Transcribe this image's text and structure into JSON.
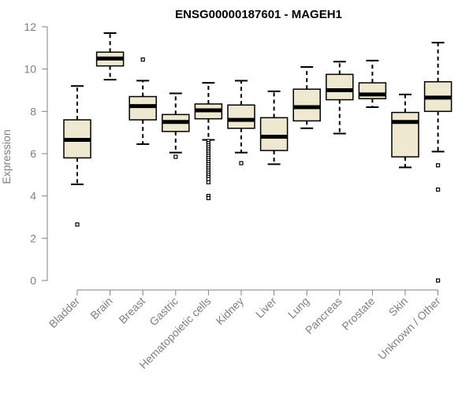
{
  "chart_data": {
    "type": "box",
    "title": "ENSG00000187601 - MAGEH1",
    "xlabel": "",
    "ylabel": "Expression",
    "ylim": [
      0,
      12
    ],
    "yticks": [
      0,
      2,
      4,
      6,
      8,
      10,
      12
    ],
    "grid": false,
    "colors": {
      "box_fill": "#efe8d0",
      "outline": "#000000",
      "axis": "#808080"
    },
    "categories": [
      "Bladder",
      "Brain",
      "Breast",
      "Gastric",
      "Hematopoietic cells",
      "Kidney",
      "Liver",
      "Lung",
      "Pancreas",
      "Prostate",
      "Skin",
      "Unknown / Other"
    ],
    "boxes": [
      {
        "whisker_low": 4.55,
        "q1": 5.8,
        "median": 6.65,
        "q3": 7.6,
        "whisker_high": 9.2,
        "outliers": [
          2.65
        ]
      },
      {
        "whisker_low": 9.5,
        "q1": 10.15,
        "median": 10.5,
        "q3": 10.8,
        "whisker_high": 11.7,
        "outliers": []
      },
      {
        "whisker_low": 6.45,
        "q1": 7.6,
        "median": 8.25,
        "q3": 8.7,
        "whisker_high": 9.45,
        "outliers": [
          10.45
        ]
      },
      {
        "whisker_low": 6.05,
        "q1": 7.05,
        "median": 7.5,
        "q3": 7.85,
        "whisker_high": 8.85,
        "outliers": [
          5.85
        ]
      },
      {
        "whisker_low": 6.65,
        "q1": 7.65,
        "median": 8.05,
        "q3": 8.35,
        "whisker_high": 9.35,
        "outliers": [
          6.6,
          6.5,
          6.4,
          6.3,
          6.2,
          6.1,
          6.0,
          5.9,
          5.8,
          5.7,
          5.6,
          5.5,
          5.4,
          5.3,
          5.2,
          5.1,
          5.0,
          4.9,
          4.8,
          4.65,
          4.0,
          3.9
        ]
      },
      {
        "whisker_low": 6.05,
        "q1": 7.2,
        "median": 7.6,
        "q3": 8.3,
        "whisker_high": 9.45,
        "outliers": [
          5.55
        ]
      },
      {
        "whisker_low": 5.5,
        "q1": 6.15,
        "median": 6.8,
        "q3": 7.7,
        "whisker_high": 8.95,
        "outliers": []
      },
      {
        "whisker_low": 7.2,
        "q1": 7.55,
        "median": 8.2,
        "q3": 9.05,
        "whisker_high": 10.1,
        "outliers": []
      },
      {
        "whisker_low": 6.95,
        "q1": 8.55,
        "median": 9.0,
        "q3": 9.75,
        "whisker_high": 10.35,
        "outliers": []
      },
      {
        "whisker_low": 8.2,
        "q1": 8.6,
        "median": 8.8,
        "q3": 9.35,
        "whisker_high": 10.4,
        "outliers": []
      },
      {
        "whisker_low": 5.35,
        "q1": 5.85,
        "median": 7.5,
        "q3": 7.95,
        "whisker_high": 8.8,
        "outliers": []
      },
      {
        "whisker_low": 6.1,
        "q1": 8.0,
        "median": 8.65,
        "q3": 9.4,
        "whisker_high": 11.25,
        "outliers": [
          5.45,
          4.3,
          0.0
        ]
      }
    ]
  }
}
